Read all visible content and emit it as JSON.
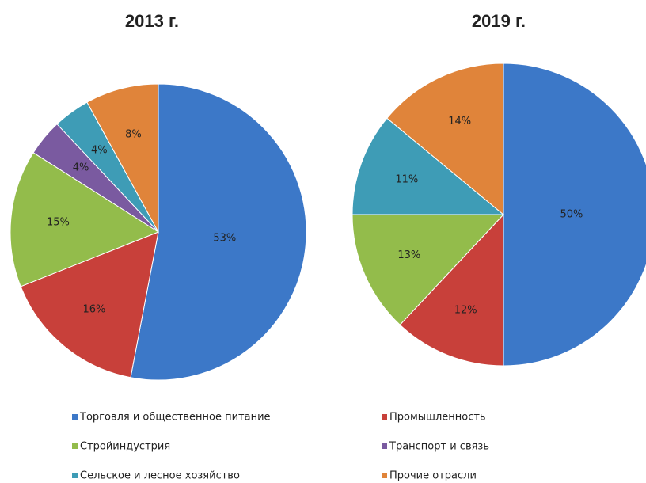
{
  "legend": {
    "categories": [
      "Торговля и общественное питание",
      "Промышленность",
      "Стройиндустрия",
      "Транспорт и связь",
      "Сельское и лесное хозяйство",
      "Прочие отрасли"
    ],
    "colors": [
      "#3c78c8",
      "#c8403a",
      "#93bc4b",
      "#7a5aa0",
      "#3e9cb6",
      "#e0843a"
    ]
  },
  "chart_data": [
    {
      "type": "pie",
      "title": "2013 г.",
      "values": [
        53,
        16,
        15,
        4,
        4,
        8
      ],
      "value_labels": [
        "53%",
        "16%",
        "15%",
        "4%",
        "4%",
        "8%"
      ]
    },
    {
      "type": "pie",
      "title": "2019 г.",
      "values": [
        50,
        12,
        13,
        null,
        11,
        14
      ],
      "value_labels": [
        "50%",
        "12%",
        "13%",
        null,
        "11%",
        "14%"
      ]
    }
  ]
}
